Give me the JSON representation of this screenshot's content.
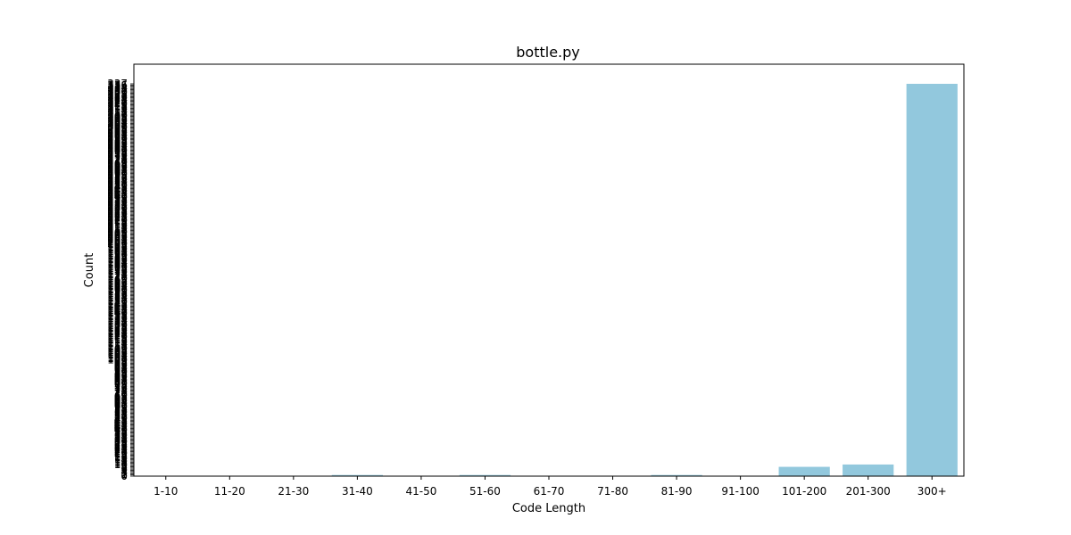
{
  "chart_data": {
    "type": "bar",
    "title": "bottle.py",
    "xlabel": "Code Length",
    "ylabel": "Count",
    "categories": [
      "1-10",
      "11-20",
      "21-30",
      "31-40",
      "41-50",
      "51-60",
      "61-70",
      "71-80",
      "81-90",
      "91-100",
      "101-200",
      "201-300",
      "300+"
    ],
    "values": [
      0,
      0,
      0,
      1,
      0,
      1,
      0,
      0,
      1,
      0,
      8,
      10,
      337
    ],
    "ylim": [
      0,
      337
    ],
    "bar_color": "#92c8dd",
    "grid": false
  }
}
